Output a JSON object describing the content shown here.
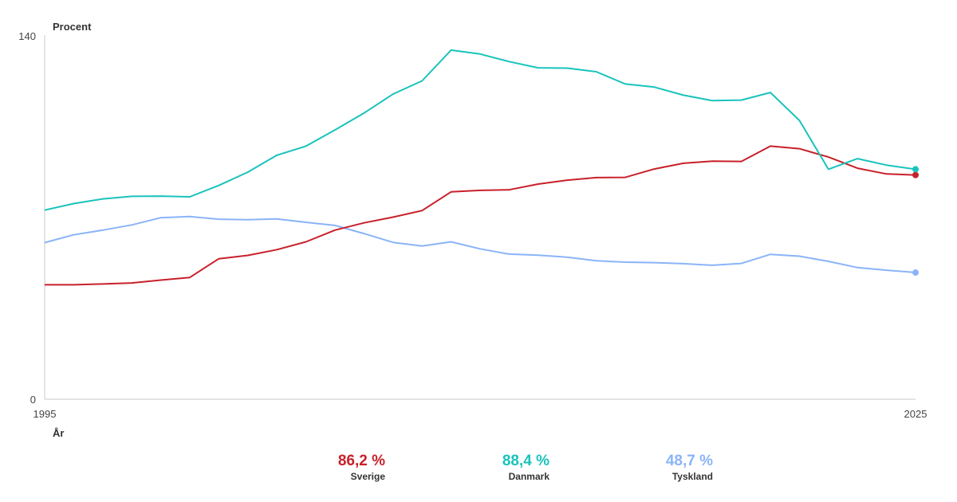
{
  "chart_data": {
    "type": "line",
    "title": "",
    "ylabel": "Procent",
    "xlabel": "År",
    "ylim": [
      0,
      140
    ],
    "xlim": [
      1995,
      2025
    ],
    "yticks": [
      "0",
      "140"
    ],
    "xticks": [
      "1995",
      "2025"
    ],
    "grid": false,
    "legend": "bottom-center",
    "series": [
      {
        "name": "Sverige",
        "color": "#c8202a",
        "final_label": "86,2 %",
        "x": [
          1995,
          1996,
          1997,
          1998,
          1999,
          2000,
          2001,
          2002,
          2003,
          2004,
          2005,
          2006,
          2007,
          2008,
          2009,
          2010,
          2011,
          2012,
          2013,
          2014,
          2015,
          2016,
          2017,
          2018,
          2019,
          2020,
          2021,
          2022,
          2023,
          2024,
          2025
        ],
        "values": [
          44.0,
          44.0,
          44.3,
          44.7,
          45.8,
          46.8,
          54.0,
          55.3,
          57.5,
          60.5,
          65.0,
          67.8,
          70.0,
          72.5,
          79.7,
          80.3,
          80.5,
          82.7,
          84.2,
          85.2,
          85.3,
          88.5,
          90.7,
          91.5,
          91.4,
          97.3,
          96.3,
          93.1,
          88.8,
          86.6,
          86.2
        ]
      },
      {
        "name": "Danmark",
        "color": "#19c3bc",
        "final_label": "88,4 %",
        "x": [
          1995,
          1996,
          1997,
          1998,
          1999,
          2000,
          2001,
          2002,
          2003,
          2004,
          2005,
          2006,
          2007,
          2008,
          2009,
          2010,
          2011,
          2012,
          2013,
          2014,
          2015,
          2016,
          2017,
          2018,
          2019,
          2020,
          2021,
          2022,
          2023,
          2024,
          2025
        ],
        "values": [
          72.7,
          75.2,
          77.0,
          78.0,
          78.1,
          77.8,
          82.2,
          87.3,
          93.8,
          97.3,
          103.5,
          110.0,
          117.3,
          122.4,
          134.2,
          132.7,
          129.8,
          127.4,
          127.3,
          125.9,
          121.2,
          120.0,
          116.9,
          114.8,
          115.0,
          117.9,
          107.2,
          88.4,
          92.5,
          90.0,
          88.4
        ]
      },
      {
        "name": "Tyskland",
        "color": "#8ab4f8",
        "final_label": "48,7 %",
        "x": [
          1995,
          1996,
          1997,
          1998,
          1999,
          2000,
          2001,
          2002,
          2003,
          2004,
          2005,
          2006,
          2007,
          2008,
          2009,
          2010,
          2011,
          2012,
          2013,
          2014,
          2015,
          2016,
          2017,
          2018,
          2019,
          2020,
          2021,
          2022,
          2023,
          2024,
          2025
        ],
        "values": [
          60.2,
          63.2,
          65.0,
          67.0,
          69.8,
          70.2,
          69.2,
          69.0,
          69.3,
          68.0,
          66.8,
          63.7,
          60.3,
          58.9,
          60.5,
          57.8,
          55.8,
          55.4,
          54.6,
          53.2,
          52.7,
          52.5,
          52.1,
          51.5,
          52.2,
          55.7,
          55.0,
          53.0,
          50.6,
          49.6,
          48.7
        ]
      }
    ]
  }
}
